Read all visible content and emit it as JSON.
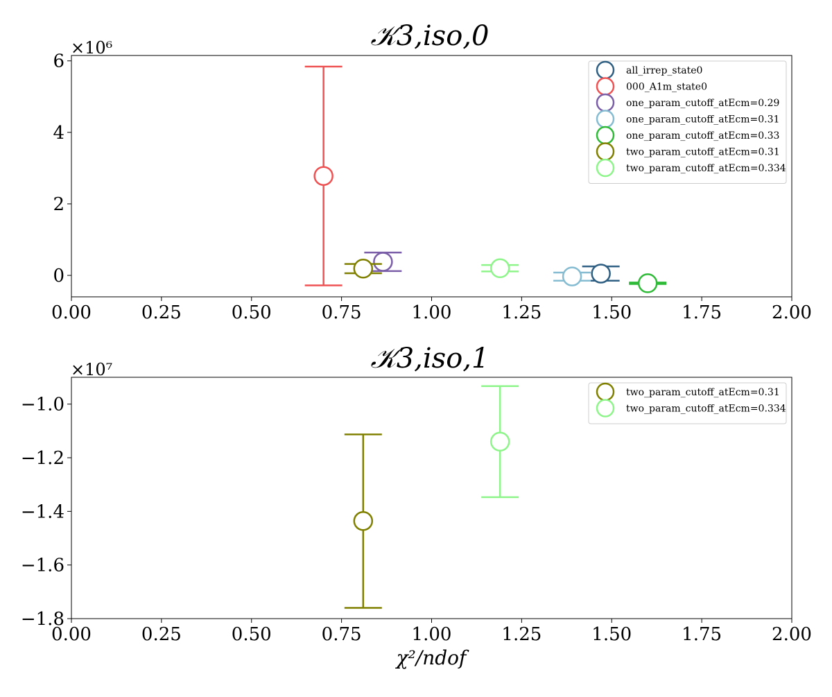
{
  "chart_data": [
    {
      "type": "scatter",
      "title": "𝒦3,iso,0",
      "scale_label": "×10⁶",
      "xlim": [
        0.0,
        2.0
      ],
      "ylim": [
        -0.6,
        6.15
      ],
      "x_ticks": [
        0.0,
        0.25,
        0.5,
        0.75,
        1.0,
        1.25,
        1.5,
        1.75,
        2.0
      ],
      "x_tick_labels": [
        "0.00",
        "0.25",
        "0.50",
        "0.75",
        "1.00",
        "1.25",
        "1.50",
        "1.75",
        "2.00"
      ],
      "y_ticks": [
        0,
        2,
        4,
        6
      ],
      "y_tick_labels": [
        "0",
        "2",
        "4",
        "6"
      ],
      "legend_position": "upper right",
      "series": [
        {
          "name": "all_irrep_state0",
          "color": "#2f5f83",
          "x": 1.47,
          "y": 0.05,
          "y_lo": -0.15,
          "y_hi": 0.25
        },
        {
          "name": "000_A1m_state0",
          "color": "#ef5253",
          "x": 0.7,
          "y": 2.78,
          "y_lo": -0.28,
          "y_hi": 5.84
        },
        {
          "name": "one_param_cutoff_atEcm=0.29",
          "color": "#7b5ea8",
          "x": 0.865,
          "y": 0.38,
          "y_lo": 0.12,
          "y_hi": 0.64
        },
        {
          "name": "one_param_cutoff_atEcm=0.31",
          "color": "#86bcd2",
          "x": 1.39,
          "y": -0.03,
          "y_lo": -0.15,
          "y_hi": 0.08
        },
        {
          "name": "one_param_cutoff_atEcm=0.33",
          "color": "#2fba38",
          "x": 1.6,
          "y": -0.22,
          "y_lo": -0.24,
          "y_hi": -0.2
        },
        {
          "name": "two_param_cutoff_atEcm=0.31",
          "color": "#808000",
          "x": 0.81,
          "y": 0.19,
          "y_lo": 0.06,
          "y_hi": 0.32
        },
        {
          "name": "two_param_cutoff_atEcm=0.334",
          "color": "#8ef58a",
          "x": 1.19,
          "y": 0.2,
          "y_lo": 0.11,
          "y_hi": 0.29
        }
      ]
    },
    {
      "type": "scatter",
      "title": "𝒦3,iso,1",
      "scale_label": "×10⁷",
      "xlim": [
        0.0,
        2.0
      ],
      "ylim": [
        -1.8,
        -0.9
      ],
      "x_ticks": [
        0.0,
        0.25,
        0.5,
        0.75,
        1.0,
        1.25,
        1.5,
        1.75,
        2.0
      ],
      "x_tick_labels": [
        "0.00",
        "0.25",
        "0.50",
        "0.75",
        "1.00",
        "1.25",
        "1.50",
        "1.75",
        "2.00"
      ],
      "y_ticks": [
        -1.0,
        -1.2,
        -1.4,
        -1.6,
        -1.8
      ],
      "y_tick_labels": [
        "−1.0",
        "−1.2",
        "−1.4",
        "−1.6",
        "−1.8"
      ],
      "xlabel": "χ²/ndof",
      "legend_position": "upper right",
      "series": [
        {
          "name": "two_param_cutoff_atEcm=0.31",
          "color": "#808000",
          "x": 0.81,
          "y": -1.436,
          "y_lo": -1.76,
          "y_hi": -1.113
        },
        {
          "name": "two_param_cutoff_atEcm=0.334",
          "color": "#8ef58a",
          "x": 1.19,
          "y": -1.14,
          "y_lo": -1.347,
          "y_hi": -0.933
        }
      ]
    }
  ]
}
